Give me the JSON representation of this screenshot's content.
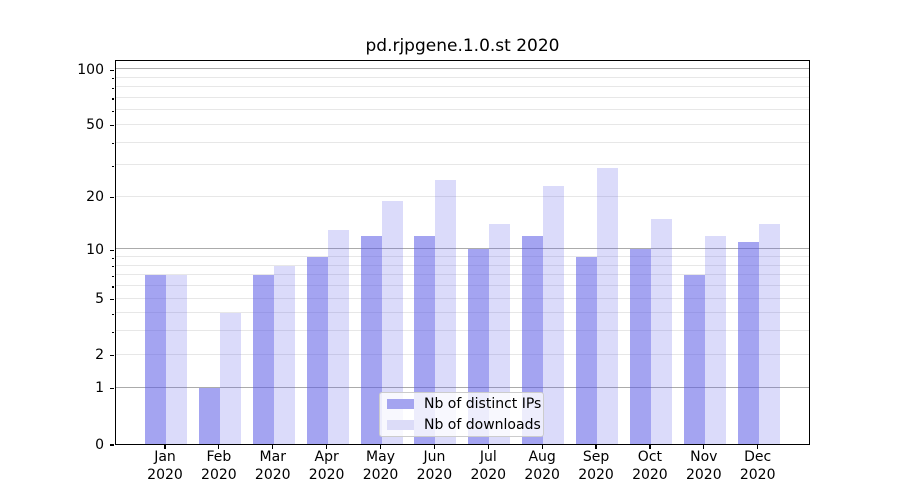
{
  "title": "pd.rjpgene.1.0.st 2020",
  "chart_data": {
    "type": "bar",
    "categories": [
      "Jan",
      "Feb",
      "Mar",
      "Apr",
      "May",
      "Jun",
      "Jul",
      "Aug",
      "Sep",
      "Oct",
      "Nov",
      "Dec"
    ],
    "year_label": "2020",
    "series": [
      {
        "name": "Nb of distinct IPs",
        "color": "#a4a4f0",
        "color_rgba": "rgba(90,90,230,0.55)",
        "values": [
          7,
          1,
          7,
          9,
          12,
          12,
          10,
          12,
          9,
          10,
          7,
          11
        ]
      },
      {
        "name": "Nb of downloads",
        "color": "#dcdcf8",
        "color_rgba": "rgba(90,90,230,0.22)",
        "values": [
          7,
          4,
          8,
          13,
          19,
          25,
          14,
          23,
          29,
          15,
          12,
          14
        ]
      }
    ],
    "xlabel": "",
    "ylabel": "",
    "yticks": [
      0,
      1,
      2,
      5,
      10,
      20,
      50,
      100
    ],
    "yscale": "log10(1+v)",
    "ylim": [
      0,
      114
    ],
    "grid": "on",
    "legend_position": "lower-center-inside"
  },
  "colors": {
    "grid_major": "#ababab",
    "grid_minor": "#e7e7e7",
    "axis": "#000000",
    "legend_border": "#cccccc"
  }
}
